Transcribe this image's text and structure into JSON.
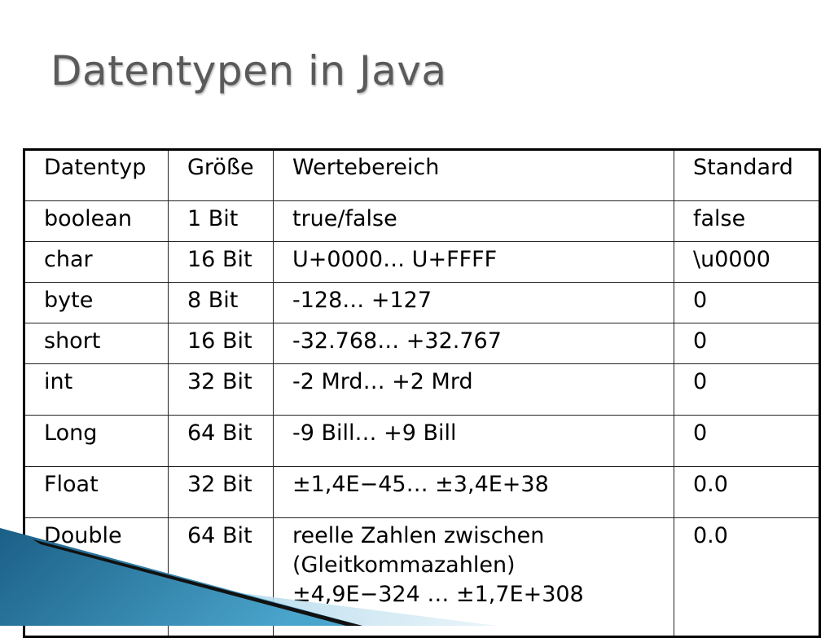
{
  "slide": {
    "title": "Datentypen in Java"
  },
  "table": {
    "headers": [
      "Datentyp",
      "Größe",
      "Wertebereich",
      "Standard"
    ],
    "rows": [
      [
        "boolean",
        "1 Bit",
        "true/false",
        "false"
      ],
      [
        "char",
        "16 Bit",
        "U+0000… U+FFFF",
        "\\u0000"
      ],
      [
        "byte",
        "8 Bit",
        "-128… +127",
        "0"
      ],
      [
        "short",
        "16 Bit",
        "-32.768… +32.767",
        "0"
      ],
      [
        "int",
        "32 Bit",
        "-2 Mrd… +2 Mrd",
        "0"
      ],
      [
        "Long",
        "64 Bit",
        "-9 Bill… +9 Bill",
        "0"
      ],
      [
        "Float",
        "32 Bit",
        "±1,4E−45… ±3,4E+38",
        "0.0"
      ],
      [
        "Double",
        "64 Bit",
        "reelle Zahlen zwischen (Gleitkommazahlen) ±4,9E−324 … ±1,7E+308",
        "0.0"
      ]
    ],
    "double_range_lines": [
      "reelle Zahlen zwischen",
      "(Gleitkommazahlen)",
      "±4,9E−324 … ±1,7E+308"
    ]
  },
  "colors": {
    "title": "#5a5a5a",
    "accent_dark": "#1f6f95",
    "accent_light": "#c9e3ef"
  }
}
